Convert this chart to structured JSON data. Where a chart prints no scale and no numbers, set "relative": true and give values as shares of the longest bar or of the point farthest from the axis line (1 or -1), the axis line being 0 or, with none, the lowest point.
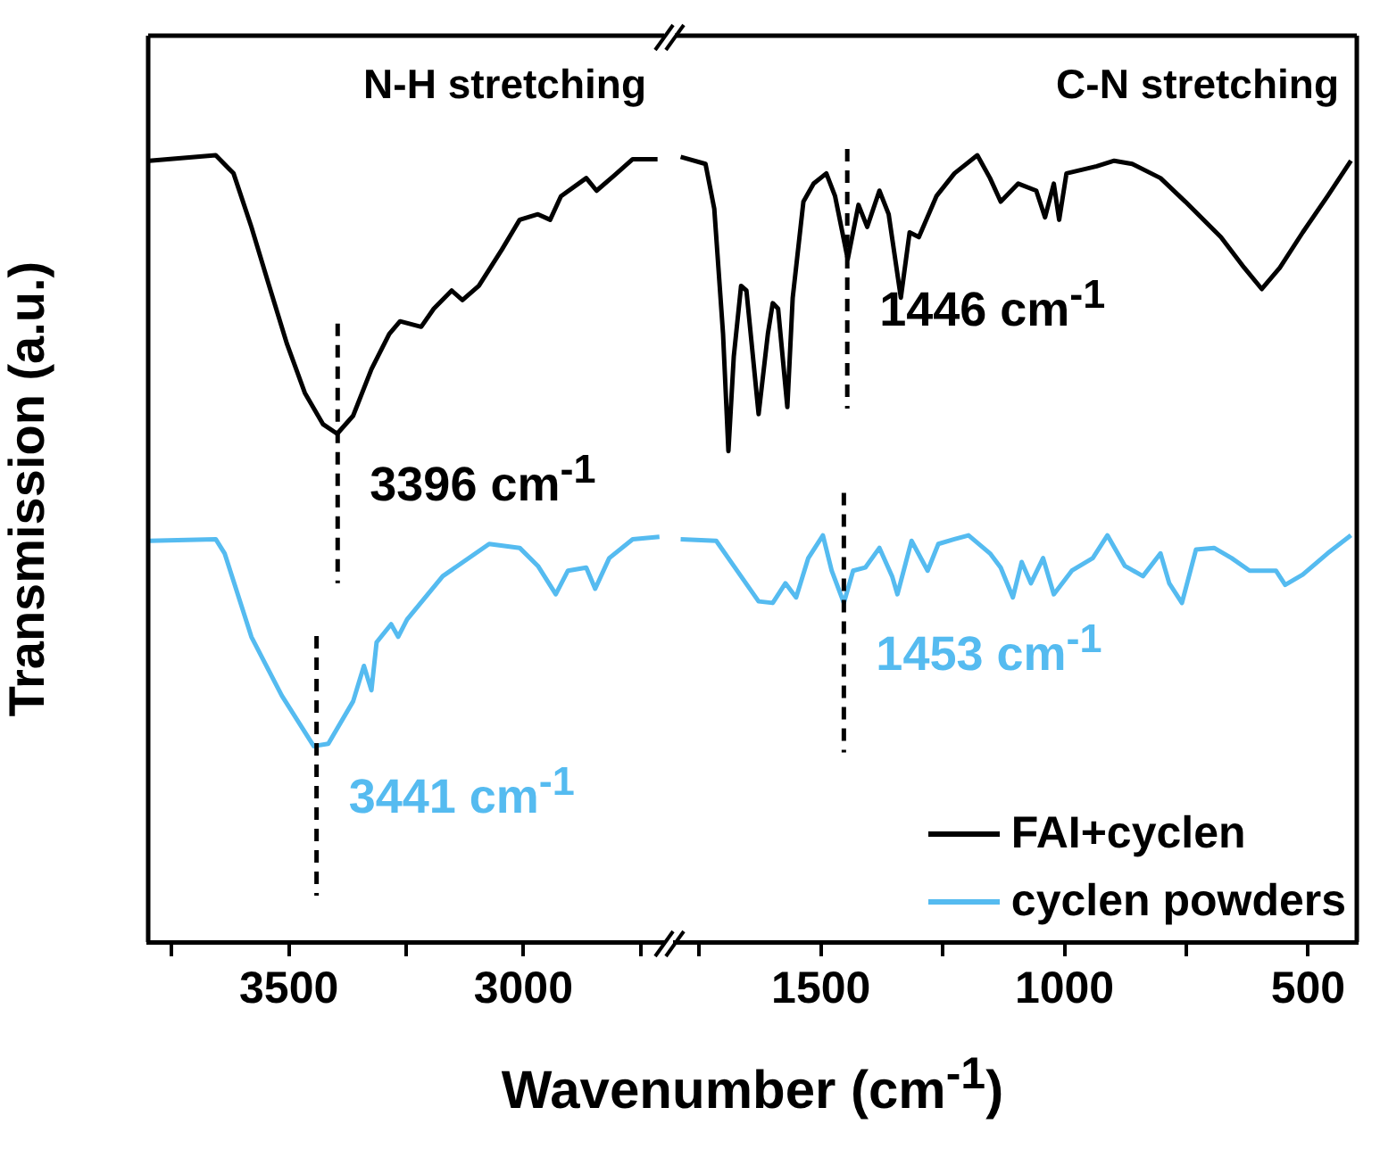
{
  "chart_data": [
    {
      "type": "line",
      "relative": true,
      "ylabel": "Transmission (a.u.)",
      "xlabel": "Wavenumber (cm$^{-1}$)",
      "xlim": [
        3800,
        2700
      ],
      "xticks": [
        {
          "value": 3750,
          "label": null
        },
        3500,
        {
          "value": 3250,
          "label": null
        },
        3000,
        {
          "value": 2750,
          "label": null
        }
      ],
      "series": [
        {
          "color": "#000000",
          "x": [
            3798,
            3656,
            3618,
            3580,
            3542,
            3504,
            3466,
            3427,
            3397,
            3363,
            3324,
            3286,
            3263,
            3218,
            3191,
            3153,
            3130,
            3095,
            3046,
            3008,
            2969,
            2943,
            2920,
            2866,
            2844,
            2805,
            2767,
            2714
          ],
          "values": [
            0.993,
            1,
            0.977,
            0.909,
            0.834,
            0.76,
            0.698,
            0.658,
            0.646,
            0.669,
            0.728,
            0.773,
            0.789,
            0.782,
            0.805,
            0.828,
            0.816,
            0.834,
            0.88,
            0.918,
            0.925,
            0.918,
            0.948,
            0.971,
            0.955,
            0.975,
            0.995,
            0.995
          ]
        },
        {
          "color": "#55bbf0",
          "x": [
            3798,
            3656,
            3637,
            3580,
            3515,
            3447,
            3416,
            3363,
            3340,
            3324,
            3313,
            3282,
            3267,
            3248,
            3172,
            3073,
            3008,
            2969,
            2931,
            2905,
            2866,
            2847,
            2817,
            2767,
            2710
          ],
          "values": [
            0.51,
            0.512,
            0.494,
            0.388,
            0.313,
            0.249,
            0.252,
            0.306,
            0.351,
            0.32,
            0.381,
            0.404,
            0.388,
            0.41,
            0.465,
            0.506,
            0.501,
            0.478,
            0.442,
            0.472,
            0.476,
            0.449,
            0.488,
            0.512,
            0.515
          ]
        }
      ],
      "ref_lines": [
        {
          "axis": "x",
          "value": 3396,
          "color": "#000000",
          "line_style": "dashed"
        },
        {
          "axis": "x",
          "value": 3441,
          "color": "#000000",
          "line_style": "dashed"
        }
      ],
      "annotations": [
        "N-H stretching",
        {
          "text": "3396 cm$^{-1}$",
          "x": 3396,
          "y": 0.646
        },
        {
          "text": "3441 cm$^{-1}$",
          "x": 3441,
          "y": 0.249
        }
      ]
    },
    {
      "type": "line",
      "relative": true,
      "xlim": [
        1800,
        400
      ],
      "xticks": [
        {
          "value": 1750,
          "label": null
        },
        1500,
        {
          "value": 1250,
          "label": null
        },
        1000,
        {
          "value": 750,
          "label": null
        },
        500
      ],
      "legend": "bottom right",
      "series": [
        {
          "name": "FAI+cyclen",
          "color": "#000000",
          "x": [
            1788,
            1737,
            1719,
            1701,
            1690,
            1679,
            1664,
            1653,
            1628,
            1609,
            1599,
            1588,
            1569,
            1558,
            1536,
            1515,
            1489,
            1471,
            1445,
            1423,
            1405,
            1380,
            1361,
            1336,
            1318,
            1299,
            1263,
            1226,
            1179,
            1153,
            1131,
            1095,
            1058,
            1040,
            1022,
            1011,
            996,
            934,
            898,
            861,
            803,
            752,
            679,
            631,
            595,
            558,
            511,
            460,
            412
          ],
          "values": [
            0.998,
            0.989,
            0.932,
            0.773,
            0.624,
            0.744,
            0.834,
            0.828,
            0.671,
            0.773,
            0.812,
            0.805,
            0.68,
            0.819,
            0.941,
            0.964,
            0.977,
            0.948,
            0.868,
            0.937,
            0.909,
            0.955,
            0.925,
            0.819,
            0.902,
            0.896,
            0.948,
            0.977,
            1,
            0.971,
            0.941,
            0.964,
            0.955,
            0.921,
            0.964,
            0.918,
            0.977,
            0.986,
            0.993,
            0.989,
            0.971,
            0.941,
            0.896,
            0.857,
            0.83,
            0.857,
            0.902,
            0.948,
            0.993
          ]
        },
        {
          "name": "cyclen powders",
          "color": "#55bbf0",
          "x": [
            1788,
            1715,
            1679,
            1628,
            1599,
            1573,
            1551,
            1526,
            1496,
            1478,
            1453,
            1434,
            1409,
            1380,
            1354,
            1343,
            1314,
            1281,
            1259,
            1226,
            1197,
            1153,
            1131,
            1106,
            1088,
            1069,
            1044,
            1022,
            985,
            942,
            912,
            876,
            839,
            803,
            785,
            759,
            730,
            693,
            657,
            620,
            566,
            547,
            511,
            460,
            412
          ],
          "values": [
            0.512,
            0.51,
            0.478,
            0.433,
            0.431,
            0.456,
            0.438,
            0.488,
            0.517,
            0.472,
            0.431,
            0.472,
            0.476,
            0.501,
            0.465,
            0.442,
            0.51,
            0.472,
            0.506,
            0.512,
            0.517,
            0.494,
            0.476,
            0.438,
            0.483,
            0.456,
            0.488,
            0.442,
            0.472,
            0.488,
            0.517,
            0.478,
            0.465,
            0.494,
            0.456,
            0.431,
            0.499,
            0.501,
            0.488,
            0.472,
            0.472,
            0.454,
            0.467,
            0.494,
            0.517
          ]
        }
      ],
      "ref_lines": [
        {
          "axis": "x",
          "value": 1446,
          "color": "#000000",
          "line_style": "dashed"
        },
        {
          "axis": "x",
          "value": 1453,
          "color": "#000000",
          "line_style": "dashed"
        }
      ],
      "annotations": [
        "C-N stretching",
        {
          "text": "1446 cm$^{-1}$",
          "x": 1446,
          "y": 0.868
        },
        {
          "text": "1453 cm$^{-1}$",
          "x": 1453,
          "y": 0.431
        }
      ]
    }
  ]
}
